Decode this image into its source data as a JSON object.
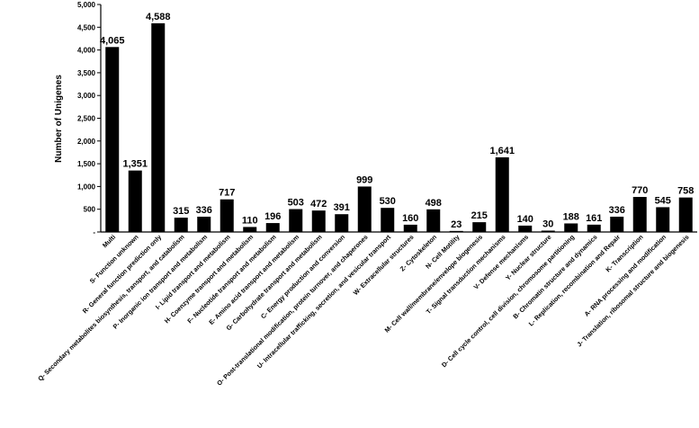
{
  "chart_data": {
    "type": "bar",
    "title": "",
    "xlabel": "",
    "ylabel": "Number of Unigenes",
    "ylim": [
      0,
      5000
    ],
    "yticks": [
      "-",
      "500",
      "1,000",
      "1,500",
      "2,000",
      "2,500",
      "3,000",
      "3,500",
      "4,000",
      "4,500",
      "5,000"
    ],
    "grid": false,
    "legend": "none",
    "bar_color": "#000000",
    "categories": [
      "Multi",
      "S- Function unknown",
      "R- General function prediction only",
      "Q- Secondary metabolites biosynthesis, transport, and catabolism",
      "P- Inorganic ion transport and  metabolism",
      "I- Lipid transport and metabolism",
      "H- Coenzyme transport and metabolism",
      "F- Nucleotide transport and metabolism",
      "E- Amino acid transport and metabolism",
      "G- Carbohydrate transport and metabolism",
      "C- Energy production and conversion",
      "O- Post-translational modification, protein turnover, and chaperones",
      "U- Intracellular trafficking, secretion, and vesicular transport",
      "W- Extracellular structures",
      "Z- Cytoskeleton",
      "N- Cell Motility",
      "M- Cell wall/membrane/envelope biogenesis",
      "T- Signal transduction mechanisms",
      "V- Defense mechanisms",
      "Y- Nuclear structure",
      "D- Cell cycle control, cell division, chromosome partitioning",
      "B- Chromatin structure and dynamics",
      "L- Replication, recombination and Repair",
      "K- Transcription",
      "A- RNA processing and modification",
      "J- Translation, ribosomal structure and biogenesis"
    ],
    "values": [
      4065,
      1351,
      4588,
      315,
      336,
      717,
      110,
      196,
      503,
      472,
      391,
      999,
      530,
      160,
      498,
      23,
      215,
      1641,
      140,
      30,
      188,
      161,
      336,
      770,
      545,
      758
    ],
    "value_labels": [
      "4,065",
      "1,351",
      "4,588",
      "315",
      "336",
      "717",
      "110",
      "196",
      "503",
      "472",
      "391",
      "999",
      "530",
      "160",
      "498",
      "23",
      "215",
      "1,641",
      "140",
      "30",
      "188",
      "161",
      "336",
      "770",
      "545",
      "758"
    ]
  }
}
